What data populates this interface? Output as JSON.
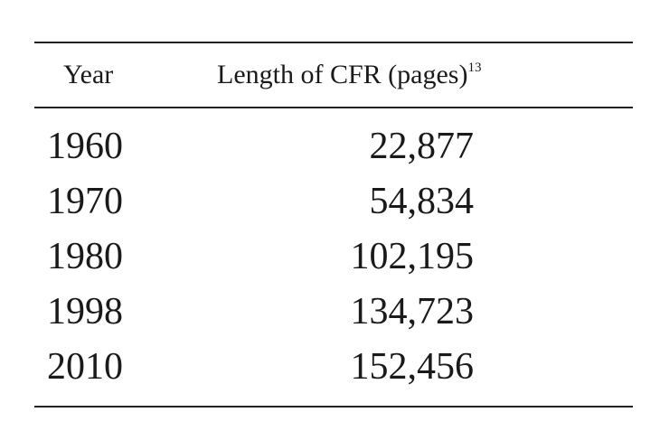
{
  "table": {
    "header": {
      "year": "Year",
      "length": "Length of CFR (pages)",
      "footnote_ref": "13"
    },
    "rows": [
      {
        "year": "1960",
        "length": "22,877"
      },
      {
        "year": "1970",
        "length": "54,834"
      },
      {
        "year": "1980",
        "length": "102,195"
      },
      {
        "year": "1998",
        "length": "134,723"
      },
      {
        "year": "2010",
        "length": "152,456"
      }
    ]
  }
}
